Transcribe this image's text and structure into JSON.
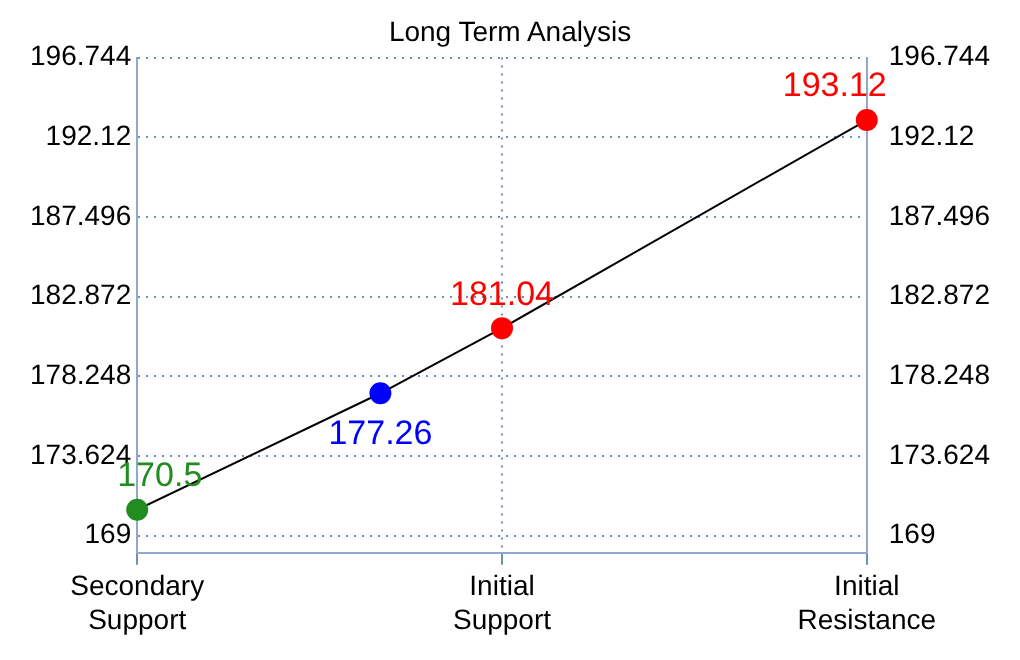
{
  "chart_data": {
    "type": "line",
    "title": "Long Term Analysis",
    "categories": [
      "Secondary Support",
      null,
      null,
      "Initial Support",
      null,
      null,
      "Initial Resistance"
    ],
    "series": [
      {
        "color": "#000000",
        "colors": [
          "#228b22",
          null,
          "#0000ff",
          "#ff0000",
          null,
          null,
          "#ff0000"
        ],
        "values": [
          170.5,
          null,
          177.26,
          181.04,
          null,
          null,
          193.12
        ]
      }
    ],
    "ylim": [
      168,
      196.744
    ],
    "yticks": [
      169,
      173.624,
      178.248,
      182.872,
      187.496,
      192.12,
      196.744
    ],
    "y2lim": [
      168,
      196.744
    ],
    "y2ticks": [
      169,
      173.624,
      178.248,
      182.872,
      187.496,
      192.12,
      196.744
    ],
    "grid": true,
    "marker": "circle",
    "line_style": "solid",
    "data_labels": true,
    "legend": false
  }
}
